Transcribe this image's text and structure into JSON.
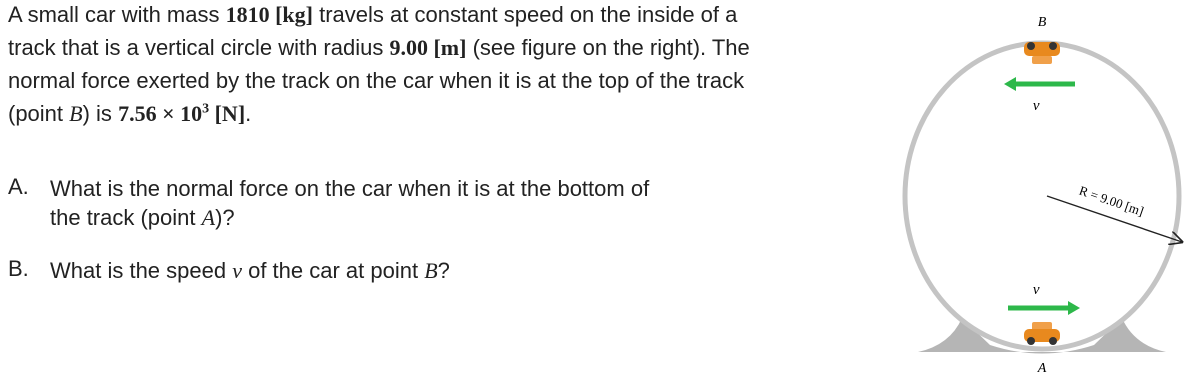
{
  "problem": {
    "intro": [
      [
        "A small car with mass ",
        "1810 [kg]",
        " travels at constant speed on the inside of a"
      ],
      [
        "track that is a vertical circle with radius ",
        "9.00 [m]",
        " (see figure on the right). The"
      ],
      [
        "normal force exerted by the track on the car when it is at the top of the track"
      ],
      [
        "(point ",
        "B",
        ") is ",
        "7.56 × 10",
        "3",
        " [N]",
        "."
      ]
    ],
    "questions": [
      {
        "label": "A.",
        "lines": [
          [
            "What is the normal force on the car when it is at the bottom of"
          ],
          [
            "the track (point ",
            "A",
            ")?"
          ]
        ]
      },
      {
        "label": "B.",
        "lines": [
          [
            "What is the speed ",
            "v",
            " of the car at point ",
            "B",
            "?"
          ]
        ]
      }
    ]
  },
  "figure": {
    "top_label": "B",
    "bottom_label": "A",
    "radius_label": "R = 9.00 [m]",
    "top_velocity": "v⃗",
    "bottom_velocity": "v⃗"
  }
}
